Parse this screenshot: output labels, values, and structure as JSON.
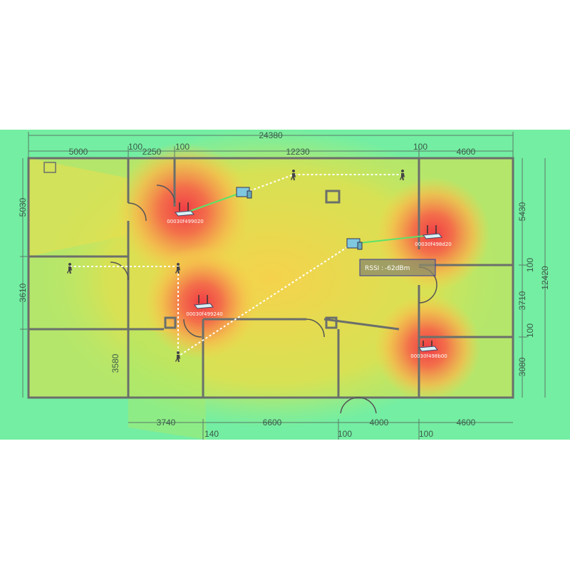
{
  "heatmap": {
    "colors": {
      "strong": "#f04848",
      "medium": "#f5c542",
      "weak": "#7ef0a0",
      "wall": "#6b6f6b"
    }
  },
  "dimensions": {
    "top_total": "24380",
    "top": [
      "5000",
      "100",
      "2250",
      "100",
      "12230",
      "100",
      "4600"
    ],
    "left": [
      "5030",
      "3610",
      "3580"
    ],
    "right": [
      "5430",
      "100",
      "3710",
      "100",
      "3080"
    ],
    "right_total": "12420",
    "bottom": [
      "3740",
      "140",
      "6600",
      "100",
      "4000",
      "100",
      "4600"
    ]
  },
  "access_points": [
    {
      "id": "00030f499020"
    },
    {
      "id": "00030f498d20"
    },
    {
      "id": "00030f499240"
    },
    {
      "id": "00030f498b00"
    }
  ],
  "tooltip": {
    "label": "RSSI :",
    "value": "-62dBm"
  }
}
